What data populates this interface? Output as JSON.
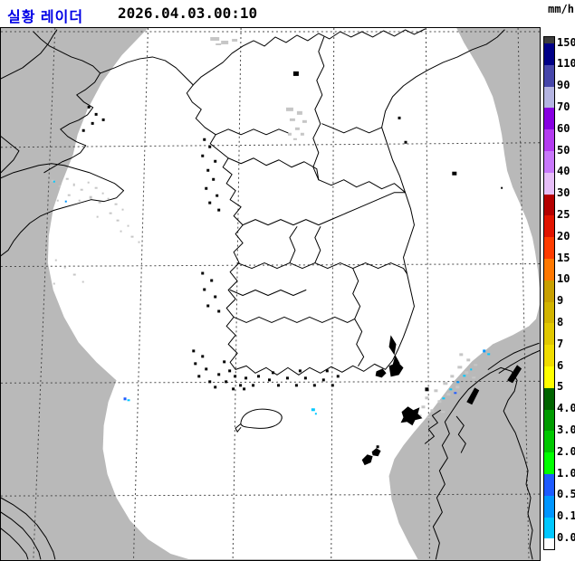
{
  "header": {
    "title": "실황 레이더",
    "timestamp": "2026.04.03.00:10"
  },
  "legend": {
    "unit": "mm/h",
    "boundary_labels": [
      "150",
      "110",
      "90",
      "70",
      "60",
      "50",
      "40",
      "30",
      "25",
      "20",
      "15",
      "10",
      "9",
      "8",
      "7",
      "6",
      "5",
      "4.0",
      "3.0",
      "2.0",
      "1.0",
      "0.5",
      "0.1",
      "0.0"
    ],
    "segment_colors": [
      "#3c3c3c",
      "#000087",
      "#4646aa",
      "#b4b4e1",
      "#8700e1",
      "#b43cf0",
      "#c878fa",
      "#e6bef7",
      "#b40000",
      "#e11400",
      "#ff3c00",
      "#ff7800",
      "#c8a000",
      "#d2b400",
      "#e1c800",
      "#f0dc00",
      "#ffff00",
      "#006400",
      "#009b00",
      "#00c800",
      "#00ff00",
      "#1e5aff",
      "#0096ff",
      "#00c8ff",
      "#ffffff"
    ]
  },
  "map": {
    "background_color": "#b9b9b9",
    "coverage_color": "#ffffff",
    "clutter_color": "#c6c6c6",
    "grid_color": "#4a4a4a",
    "coast_color": "#000000",
    "clutter_echoes": [
      [
        56,
        168,
        3,
        2
      ],
      [
        64,
        174,
        2,
        2
      ],
      [
        72,
        166,
        3,
        2
      ],
      [
        80,
        172,
        2,
        3
      ],
      [
        88,
        178,
        3,
        2
      ],
      [
        96,
        170,
        2,
        2
      ],
      [
        104,
        176,
        3,
        2
      ],
      [
        112,
        182,
        2,
        2
      ],
      [
        98,
        186,
        3,
        3
      ],
      [
        86,
        190,
        2,
        2
      ],
      [
        74,
        184,
        3,
        2
      ],
      [
        62,
        190,
        2,
        2
      ],
      [
        108,
        192,
        3,
        2
      ],
      [
        118,
        188,
        2,
        2
      ],
      [
        126,
        194,
        3,
        2
      ],
      [
        134,
        200,
        2,
        2
      ],
      [
        120,
        204,
        3,
        2
      ],
      [
        106,
        208,
        2,
        2
      ],
      [
        128,
        212,
        3,
        2
      ],
      [
        140,
        218,
        2,
        2
      ],
      [
        132,
        224,
        2,
        2
      ],
      [
        144,
        230,
        3,
        2
      ],
      [
        152,
        236,
        2,
        2
      ],
      [
        60,
        256,
        2,
        2
      ],
      [
        70,
        264,
        2,
        2
      ],
      [
        80,
        272,
        3,
        2
      ],
      [
        58,
        282,
        2,
        2
      ],
      [
        90,
        280,
        2,
        2
      ],
      [
        316,
        88,
        8,
        4
      ],
      [
        328,
        92,
        6,
        4
      ],
      [
        320,
        100,
        6,
        3
      ],
      [
        334,
        102,
        5,
        3
      ],
      [
        326,
        110,
        5,
        3
      ],
      [
        318,
        116,
        4,
        3
      ],
      [
        332,
        116,
        4,
        3
      ],
      [
        324,
        122,
        4,
        2
      ],
      [
        232,
        10,
        10,
        4
      ],
      [
        244,
        14,
        8,
        4
      ],
      [
        256,
        12,
        6,
        3
      ],
      [
        238,
        17,
        6,
        2
      ],
      [
        508,
        360,
        4,
        3
      ],
      [
        516,
        366,
        4,
        3
      ],
      [
        524,
        372,
        4,
        2
      ],
      [
        506,
        374,
        5,
        3
      ],
      [
        514,
        380,
        4,
        3
      ],
      [
        498,
        384,
        4,
        3
      ],
      [
        522,
        386,
        4,
        2
      ],
      [
        490,
        392,
        5,
        3
      ],
      [
        504,
        396,
        4,
        3
      ],
      [
        480,
        400,
        4,
        3
      ],
      [
        494,
        404,
        4,
        3
      ],
      [
        470,
        408,
        4,
        3
      ],
      [
        484,
        412,
        4,
        3
      ],
      [
        466,
        418,
        4,
        3
      ],
      [
        476,
        422,
        4,
        3
      ],
      [
        488,
        424,
        4,
        2
      ],
      [
        462,
        428,
        4,
        3
      ],
      [
        472,
        430,
        4,
        2
      ],
      [
        272,
        428,
        20,
        3
      ],
      [
        281,
        432,
        15,
        3
      ],
      [
        292,
        426,
        10,
        2
      ]
    ],
    "precip_echoes": [
      [
        136,
        409,
        3,
        3,
        "#1e5aff"
      ],
      [
        140,
        411,
        3,
        2,
        "#00c8ff"
      ],
      [
        344,
        421,
        4,
        3,
        "#00c8ff"
      ],
      [
        348,
        426,
        2,
        2,
        "#00c8ff"
      ],
      [
        534,
        356,
        3,
        3,
        "#0096ff"
      ],
      [
        539,
        360,
        3,
        2,
        "#00c8ff"
      ],
      [
        520,
        377,
        2,
        2,
        "#00c8ff"
      ],
      [
        512,
        384,
        3,
        2,
        "#00c8ff"
      ],
      [
        505,
        391,
        3,
        2,
        "#0096ff"
      ],
      [
        502,
        403,
        3,
        2,
        "#1e5aff"
      ],
      [
        497,
        399,
        3,
        2,
        "#00c8ff"
      ],
      [
        489,
        409,
        3,
        2,
        "#00c8ff"
      ],
      [
        58,
        169,
        2,
        2,
        "#00c8ff"
      ],
      [
        71,
        191,
        2,
        2,
        "#0096ff"
      ]
    ]
  }
}
